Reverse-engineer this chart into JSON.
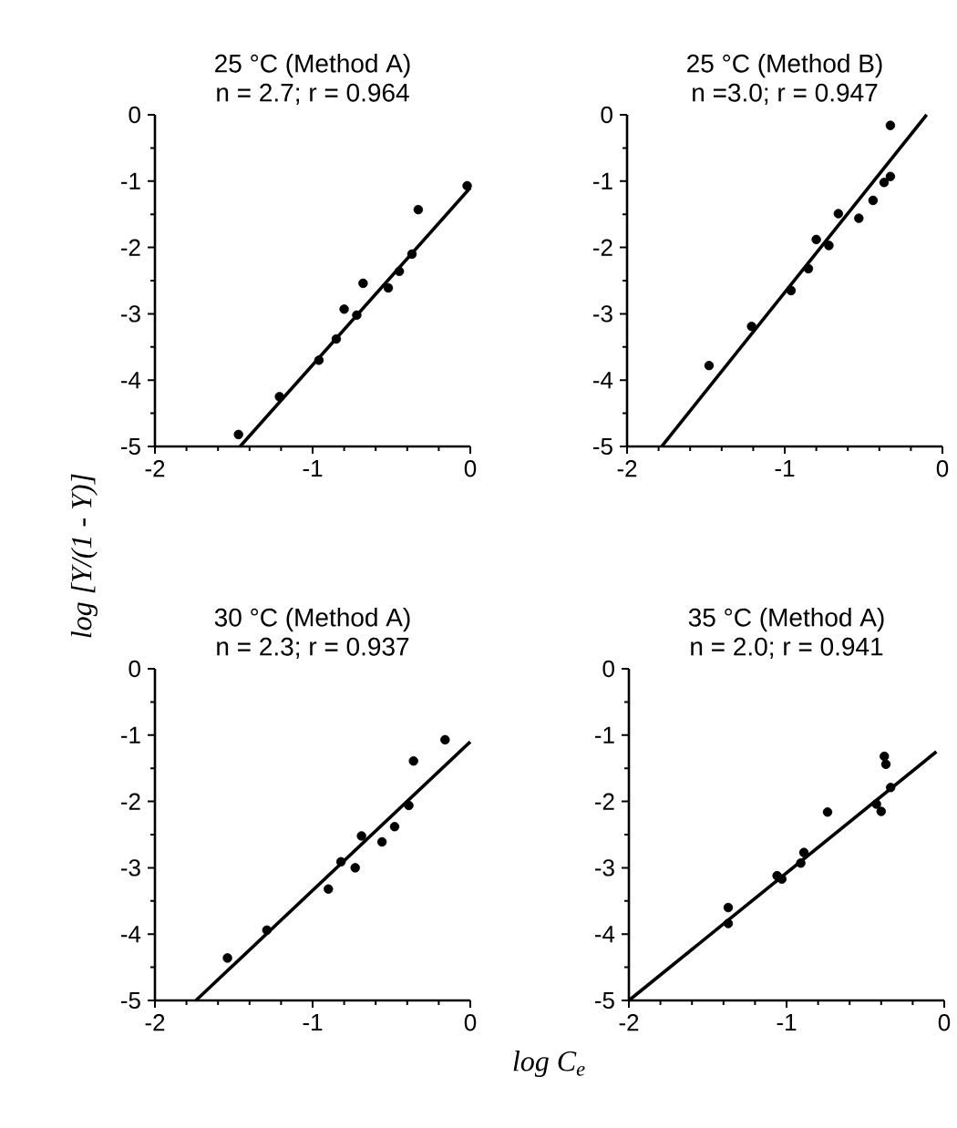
{
  "chart_data": [
    {
      "type": "scatter",
      "title": "25 °C (Method A)",
      "subtitle": "n = 2.7; r = 0.964",
      "ylabel": "log [Y/(1 - Y)]",
      "xlim": [
        -2,
        0
      ],
      "ylim": [
        -5,
        0
      ],
      "xticks": [
        -2,
        -1,
        0
      ],
      "yticks": [
        0,
        -1,
        -2,
        -3,
        -4,
        -5
      ],
      "series": [
        {
          "type": "scatter",
          "marker": "circle",
          "color": "#000000",
          "x": [
            -1.47,
            -1.21,
            -0.96,
            -0.85,
            -0.8,
            -0.72,
            -0.68,
            -0.52,
            -0.45,
            -0.37,
            -0.33,
            -0.02
          ],
          "values": [
            -4.82,
            -4.25,
            -3.7,
            -3.38,
            -2.93,
            -3.02,
            -2.54,
            -2.61,
            -2.36,
            -2.1,
            -1.43,
            -1.07
          ]
        },
        {
          "type": "line",
          "marker": "none",
          "color": "#000000",
          "x": [
            -1.46,
            0
          ],
          "values": [
            -5,
            -1.1
          ]
        }
      ]
    },
    {
      "type": "scatter",
      "title": "25 °C (Method B)",
      "subtitle": "n =3.0; r = 0.947",
      "xlim": [
        -2,
        0
      ],
      "ylim": [
        -5,
        0
      ],
      "xticks": [
        -2,
        -1,
        0
      ],
      "yticks": [
        0,
        -1,
        -2,
        -3,
        -4,
        -5
      ],
      "series": [
        {
          "type": "scatter",
          "marker": "circle",
          "color": "#000000",
          "x": [
            -1.48,
            -1.21,
            -0.96,
            -0.85,
            -0.8,
            -0.72,
            -0.66,
            -0.53,
            -0.44,
            -0.37,
            -0.33,
            -0.33
          ],
          "values": [
            -3.78,
            -3.19,
            -2.65,
            -2.32,
            -1.88,
            -1.97,
            -1.49,
            -1.56,
            -1.29,
            -1.02,
            -0.93,
            -0.16
          ]
        },
        {
          "type": "line",
          "marker": "none",
          "color": "#000000",
          "x": [
            -1.78,
            -0.1
          ],
          "values": [
            -5,
            0
          ]
        }
      ]
    },
    {
      "type": "scatter",
      "title": "30 °C (Method A)",
      "subtitle": "n = 2.3; r = 0.937",
      "xlabel": "log C$_{e}$",
      "xlim": [
        -2,
        0
      ],
      "ylim": [
        -5,
        0
      ],
      "xticks": [
        -2,
        -1,
        0
      ],
      "yticks": [
        0,
        -1,
        -2,
        -3,
        -4,
        -5
      ],
      "series": [
        {
          "type": "scatter",
          "marker": "circle",
          "color": "#000000",
          "x": [
            -1.54,
            -1.29,
            -0.9,
            -0.82,
            -0.73,
            -0.69,
            -0.56,
            -0.48,
            -0.39,
            -0.36,
            -0.16
          ],
          "values": [
            -4.36,
            -3.94,
            -3.32,
            -2.91,
            -3.0,
            -2.52,
            -2.61,
            -2.38,
            -2.06,
            -1.39,
            -1.07
          ]
        },
        {
          "type": "line",
          "marker": "none",
          "color": "#000000",
          "x": [
            -1.74,
            0
          ],
          "values": [
            -5,
            -1.1
          ]
        }
      ]
    },
    {
      "type": "scatter",
      "title": "35 °C (Method A)",
      "subtitle": "n = 2.0; r = 0.941",
      "xlim": [
        -2,
        0
      ],
      "ylim": [
        -5,
        0
      ],
      "xticks": [
        -2,
        -1,
        0
      ],
      "yticks": [
        0,
        -1,
        -2,
        -3,
        -4,
        -5
      ],
      "series": [
        {
          "type": "scatter",
          "marker": "circle",
          "color": "#000000",
          "x": [
            -1.37,
            -1.37,
            -1.06,
            -1.03,
            -0.91,
            -0.89,
            -0.74,
            -0.43,
            -0.4,
            -0.38,
            -0.37,
            -0.34
          ],
          "values": [
            -3.6,
            -3.84,
            -3.12,
            -3.17,
            -2.93,
            -2.77,
            -2.16,
            -2.04,
            -2.15,
            -1.32,
            -1.44,
            -1.79
          ]
        },
        {
          "type": "line",
          "marker": "none",
          "color": "#000000",
          "x": [
            -2,
            -0.05
          ],
          "values": [
            -5,
            -1.25
          ]
        }
      ]
    }
  ]
}
